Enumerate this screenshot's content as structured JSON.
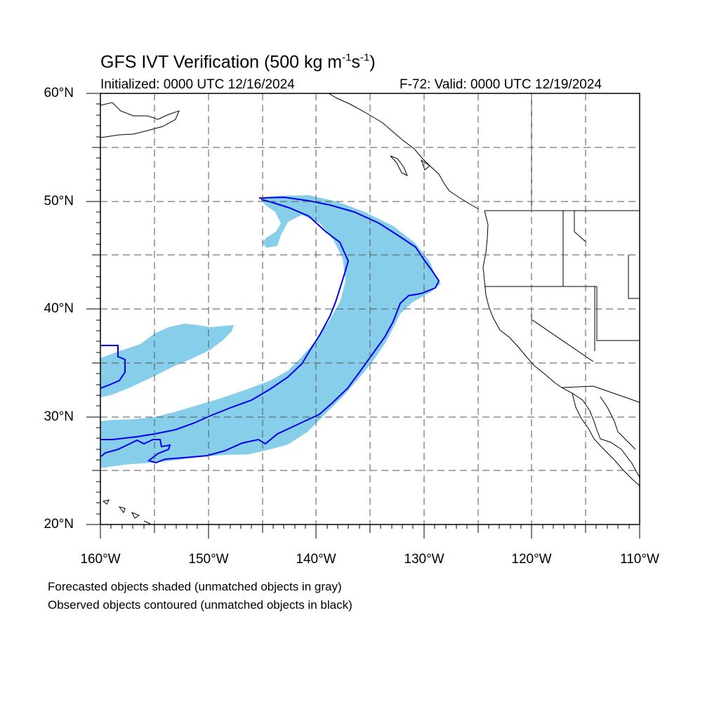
{
  "title": {
    "main": "GFS IVT Verification (500 kg m",
    "sup1": "-1",
    "mid": "s",
    "sup2": "-1",
    "end": ")"
  },
  "subtitle": {
    "initialized": "Initialized: 0000 UTC 12/16/2024",
    "valid": "F-72: Valid: 0000 UTC 12/19/2024"
  },
  "axes": {
    "lat_ticks": [
      "60°N",
      "50°N",
      "40°N",
      "30°N",
      "20°N"
    ],
    "lon_ticks": [
      "160°W",
      "150°W",
      "140°W",
      "130°W",
      "120°W",
      "110°W"
    ],
    "lat_range": [
      20,
      60
    ],
    "lon_range": [
      -160,
      -110
    ]
  },
  "legend": {
    "line1": "Forecasted objects shaded (unmatched objects in gray)",
    "line2": "Observed objects contoured (unmatched objects in black)"
  },
  "colors": {
    "forecast_fill": "#87ceeb",
    "observed_contour": "#0000ee",
    "coastline": "#000000",
    "grid": "#555555"
  }
}
